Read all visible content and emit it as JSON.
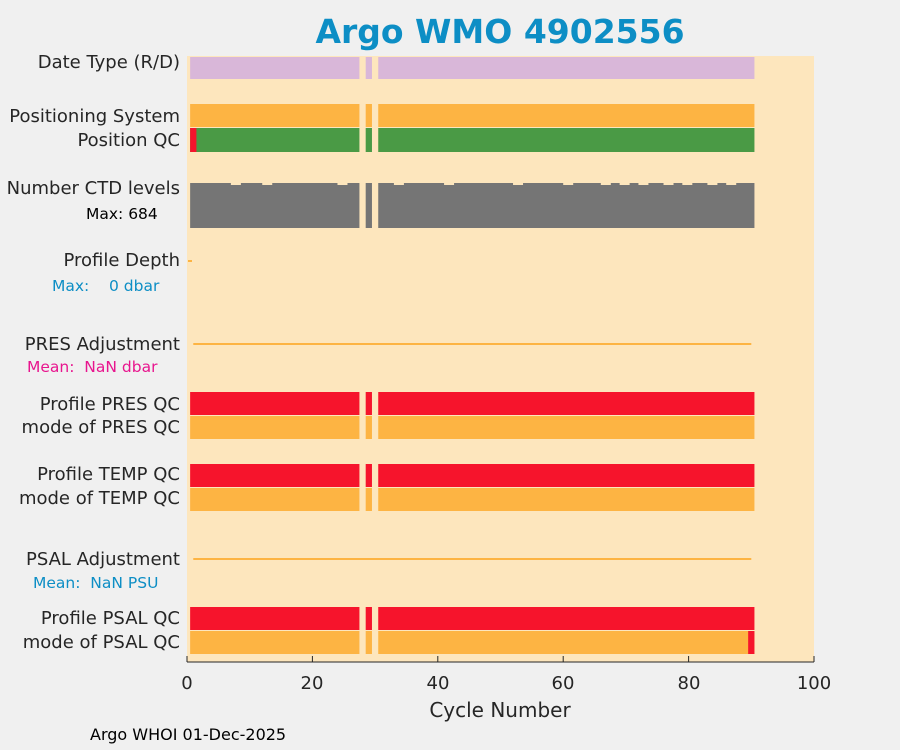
{
  "title": "Argo WMO 4902556",
  "footer": "Argo WHOI 01-Dec-2025",
  "colors": {
    "background_panel": "#fde6bd",
    "date_type": "#d9b7d9",
    "orange": "#fdb443",
    "green": "#4a9a45",
    "red": "#f6142c",
    "gray": "#757575",
    "title": "#0d8ec5",
    "magenta": "#e8158e"
  },
  "chart_data": {
    "type": "bar",
    "title": "Argo WMO 4902556",
    "xlabel": "Cycle Number",
    "xlim": [
      0,
      100
    ],
    "xticks": [
      "0",
      "20",
      "40",
      "60",
      "80",
      "100"
    ],
    "cycle_range": [
      1,
      90
    ],
    "missing_cycles": [
      28,
      30
    ],
    "rows": [
      {
        "label": "Date Type (R/D)",
        "color": "date_type"
      },
      {
        "label": "Positioning System",
        "color": "orange"
      },
      {
        "label": "Position QC",
        "color": "green",
        "exceptions": [
          {
            "cycle": 1,
            "color": "red"
          }
        ]
      },
      {
        "label": "Number CTD levels",
        "color": "gray",
        "max": "Max: 684"
      },
      {
        "label": "Profile Depth",
        "sub": "Max:    0 dbar"
      },
      {
        "label": "PRES Adjustment",
        "sub": "Mean:  NaN dbar"
      },
      {
        "label": "Profile PRES QC",
        "color": "red"
      },
      {
        "label": "mode of PRES QC",
        "color": "orange"
      },
      {
        "label": "Profile TEMP QC",
        "color": "red"
      },
      {
        "label": "mode of TEMP QC",
        "color": "orange"
      },
      {
        "label": "PSAL Adjustment",
        "sub": "Mean:  NaN PSU"
      },
      {
        "label": "Profile PSAL QC",
        "color": "red"
      },
      {
        "label": "mode of PSAL QC",
        "color": "orange",
        "exceptions": [
          {
            "cycle": 90,
            "color": "red"
          }
        ]
      }
    ]
  }
}
